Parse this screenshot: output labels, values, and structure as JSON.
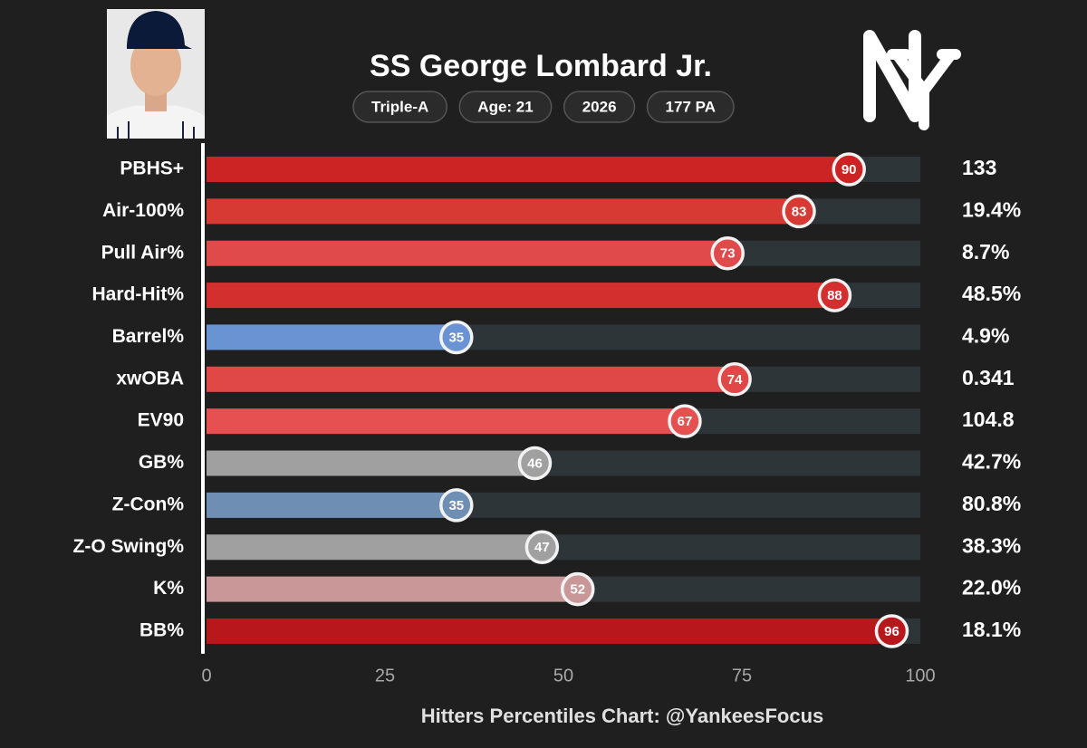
{
  "chart_data": {
    "type": "bar",
    "orientation": "horizontal",
    "title": "SS George Lombard Jr.",
    "tags": [
      "Triple-A",
      "Age: 21",
      "2026",
      "177 PA"
    ],
    "caption": "Hitters Percentiles Chart: @YankeesFocus",
    "categories": [
      "PBHS+",
      "Air-100%",
      "Pull Air%",
      "Hard-Hit%",
      "Barrel%",
      "xwOBA",
      "EV90",
      "GB%",
      "Z-Con%",
      "Z-O Swing%",
      "K%",
      "BB%"
    ],
    "values": [
      90,
      83,
      73,
      88,
      35,
      74,
      67,
      46,
      35,
      47,
      52,
      96
    ],
    "colors": [
      "#cc2424",
      "#d63a33",
      "#e04a4a",
      "#d32f2f",
      "#6a93d4",
      "#e04848",
      "#e65050",
      "#a0a0a0",
      "#6e8fb3",
      "#a0a0a0",
      "#c99797",
      "#b8181c"
    ],
    "stats": [
      "133",
      "19.4%",
      "8.7%",
      "48.5%",
      "4.9%",
      "0.341",
      "104.8",
      "42.7%",
      "80.8%",
      "38.3%",
      "22.0%",
      "18.1%"
    ],
    "xlim": [
      0,
      100
    ],
    "xticks": [
      0,
      25,
      50,
      75,
      100
    ],
    "grid": false
  }
}
